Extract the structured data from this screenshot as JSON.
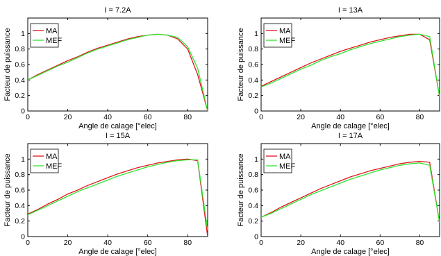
{
  "chart_data": [
    {
      "type": "line",
      "title": "I = 7.2A",
      "xlabel": "Angle de calage [°elec]",
      "ylabel": "Facteur de puissance",
      "xlim": [
        0,
        90
      ],
      "ylim": [
        0,
        1.2
      ],
      "xticks": [
        0,
        20,
        40,
        60,
        80
      ],
      "yticks": [
        0,
        0.2,
        0.4,
        0.6,
        0.8,
        1
      ],
      "grid": false,
      "legend": "top-left",
      "series": [
        {
          "name": "MA",
          "color": "#e0141e",
          "x": [
            0,
            5,
            10,
            15,
            20,
            25,
            30,
            35,
            40,
            45,
            50,
            55,
            60,
            65,
            70,
            75,
            80,
            85,
            90
          ],
          "y": [
            0.4,
            0.47,
            0.53,
            0.59,
            0.65,
            0.7,
            0.76,
            0.81,
            0.85,
            0.89,
            0.93,
            0.96,
            0.98,
            0.99,
            0.98,
            0.93,
            0.8,
            0.47,
            0.0
          ]
        },
        {
          "name": "MEF",
          "color": "#2ee62e",
          "x": [
            0,
            5,
            10,
            15,
            20,
            25,
            30,
            35,
            40,
            45,
            50,
            55,
            60,
            65,
            70,
            75,
            80,
            85,
            90
          ],
          "y": [
            0.4,
            0.46,
            0.52,
            0.58,
            0.63,
            0.69,
            0.75,
            0.8,
            0.84,
            0.88,
            0.92,
            0.95,
            0.98,
            0.99,
            0.98,
            0.95,
            0.83,
            0.55,
            0.0
          ]
        }
      ]
    },
    {
      "type": "line",
      "title": "I = 13A",
      "xlabel": "Angle de calage [°elec]",
      "ylabel": "Facteur de puissance",
      "xlim": [
        0,
        90
      ],
      "ylim": [
        0,
        1.2
      ],
      "xticks": [
        0,
        20,
        40,
        60,
        80
      ],
      "yticks": [
        0,
        0.2,
        0.4,
        0.6,
        0.8,
        1
      ],
      "grid": false,
      "legend": "top-left",
      "series": [
        {
          "name": "MA",
          "color": "#e0141e",
          "x": [
            0,
            5,
            10,
            15,
            20,
            25,
            30,
            35,
            40,
            45,
            50,
            55,
            60,
            65,
            70,
            75,
            80,
            85,
            90
          ],
          "y": [
            0.32,
            0.38,
            0.44,
            0.5,
            0.56,
            0.62,
            0.67,
            0.72,
            0.77,
            0.81,
            0.85,
            0.89,
            0.92,
            0.95,
            0.97,
            0.99,
            0.99,
            0.92,
            0.18
          ]
        },
        {
          "name": "MEF",
          "color": "#2ee62e",
          "x": [
            0,
            5,
            10,
            15,
            20,
            25,
            30,
            35,
            40,
            45,
            50,
            55,
            60,
            65,
            70,
            75,
            80,
            85,
            90
          ],
          "y": [
            0.31,
            0.36,
            0.42,
            0.48,
            0.54,
            0.59,
            0.65,
            0.7,
            0.74,
            0.79,
            0.83,
            0.87,
            0.9,
            0.93,
            0.96,
            0.98,
            0.99,
            0.96,
            0.18
          ]
        }
      ]
    },
    {
      "type": "line",
      "title": "I = 15A",
      "xlabel": "Angle de calage [°elec]",
      "ylabel": "Facteur de puissance",
      "xlim": [
        0,
        90
      ],
      "ylim": [
        0,
        1.2
      ],
      "xticks": [
        0,
        20,
        40,
        60,
        80
      ],
      "yticks": [
        0,
        0.2,
        0.4,
        0.6,
        0.8,
        1
      ],
      "grid": false,
      "legend": "top-left",
      "series": [
        {
          "name": "MA",
          "color": "#e0141e",
          "x": [
            0,
            5,
            10,
            15,
            20,
            25,
            30,
            35,
            40,
            45,
            50,
            55,
            60,
            65,
            70,
            75,
            80,
            85,
            90
          ],
          "y": [
            0.29,
            0.35,
            0.42,
            0.48,
            0.55,
            0.6,
            0.66,
            0.71,
            0.76,
            0.81,
            0.85,
            0.89,
            0.92,
            0.95,
            0.97,
            0.99,
            1.0,
            0.98,
            0.0
          ]
        },
        {
          "name": "MEF",
          "color": "#2ee62e",
          "x": [
            0,
            5,
            10,
            15,
            20,
            25,
            30,
            35,
            40,
            45,
            50,
            55,
            60,
            65,
            70,
            75,
            80,
            85,
            90
          ],
          "y": [
            0.28,
            0.34,
            0.4,
            0.46,
            0.52,
            0.58,
            0.63,
            0.68,
            0.73,
            0.78,
            0.82,
            0.86,
            0.9,
            0.93,
            0.96,
            0.98,
            0.99,
            0.99,
            0.08
          ]
        }
      ]
    },
    {
      "type": "line",
      "title": "I = 17A",
      "xlabel": "Angle de calage [°elec]",
      "ylabel": "Facteur de puissance",
      "xlim": [
        0,
        90
      ],
      "ylim": [
        0,
        1.2
      ],
      "xticks": [
        0,
        20,
        40,
        60,
        80
      ],
      "yticks": [
        0,
        0.2,
        0.4,
        0.6,
        0.8,
        1
      ],
      "grid": false,
      "legend": "top-left",
      "series": [
        {
          "name": "MA",
          "color": "#e0141e",
          "x": [
            0,
            5,
            10,
            15,
            20,
            25,
            30,
            35,
            40,
            45,
            50,
            55,
            60,
            65,
            70,
            75,
            80,
            85,
            90
          ],
          "y": [
            0.25,
            0.31,
            0.38,
            0.44,
            0.5,
            0.56,
            0.62,
            0.67,
            0.72,
            0.77,
            0.81,
            0.85,
            0.88,
            0.91,
            0.94,
            0.96,
            0.97,
            0.96,
            0.18
          ]
        },
        {
          "name": "MEF",
          "color": "#2ee62e",
          "x": [
            0,
            5,
            10,
            15,
            20,
            25,
            30,
            35,
            40,
            45,
            50,
            55,
            60,
            65,
            70,
            75,
            80,
            85,
            90
          ],
          "y": [
            0.25,
            0.3,
            0.36,
            0.42,
            0.48,
            0.54,
            0.59,
            0.64,
            0.69,
            0.74,
            0.78,
            0.82,
            0.86,
            0.89,
            0.92,
            0.94,
            0.95,
            0.92,
            0.18
          ]
        }
      ]
    }
  ]
}
